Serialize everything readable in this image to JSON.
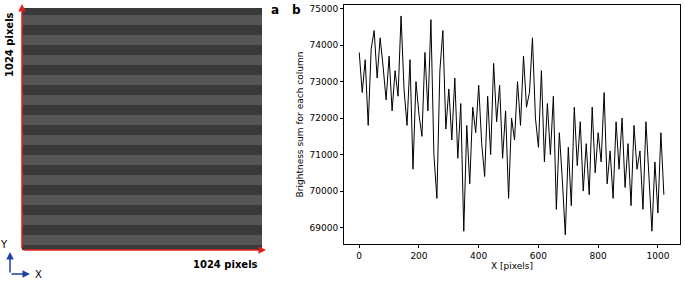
{
  "chart_data": [
    {
      "type": "image",
      "panel": "a",
      "width_label": "1024 pixels",
      "height_label": "1024 pixels",
      "x_axis_label": "X",
      "y_axis_label": "Y"
    },
    {
      "type": "line",
      "panel": "b",
      "xlabel": "X [pixels]",
      "ylabel": "Brightness sum for each column",
      "x": [
        0,
        10,
        20,
        30,
        40,
        50,
        60,
        70,
        80,
        90,
        100,
        110,
        120,
        130,
        140,
        150,
        160,
        170,
        180,
        190,
        200,
        210,
        220,
        230,
        240,
        250,
        260,
        270,
        280,
        290,
        300,
        310,
        320,
        330,
        340,
        350,
        360,
        370,
        380,
        390,
        400,
        410,
        420,
        430,
        440,
        450,
        460,
        470,
        480,
        490,
        500,
        510,
        520,
        530,
        540,
        550,
        560,
        570,
        580,
        590,
        600,
        610,
        620,
        630,
        640,
        650,
        660,
        670,
        680,
        690,
        700,
        710,
        720,
        730,
        740,
        750,
        760,
        770,
        780,
        790,
        800,
        810,
        820,
        830,
        840,
        850,
        860,
        870,
        880,
        890,
        900,
        910,
        920,
        930,
        940,
        950,
        960,
        970,
        980,
        990,
        1000,
        1010,
        1020
      ],
      "values": [
        73800,
        72700,
        73600,
        71800,
        73900,
        74400,
        73100,
        74200,
        73400,
        72500,
        73700,
        72200,
        73300,
        72600,
        74800,
        72800,
        71800,
        73600,
        70600,
        73000,
        72100,
        71500,
        73800,
        72200,
        74700,
        71000,
        69800,
        73300,
        74400,
        71700,
        72800,
        71400,
        73100,
        70900,
        72400,
        68900,
        71800,
        70200,
        72300,
        71600,
        72900,
        71300,
        70400,
        72600,
        71000,
        73500,
        71900,
        72900,
        70900,
        72200,
        69800,
        72000,
        71400,
        73000,
        71800,
        73700,
        72300,
        72700,
        74200,
        72000,
        71200,
        73300,
        70800,
        72400,
        71000,
        72600,
        69500,
        71600,
        70300,
        68800,
        71200,
        69600,
        72300,
        70700,
        71900,
        70000,
        71300,
        69900,
        72300,
        70500,
        71600,
        70800,
        72700,
        70200,
        71100,
        69800,
        71900,
        70600,
        72000,
        70100,
        71300,
        69600,
        71800,
        70600,
        71100,
        69500,
        71900,
        70300,
        68900,
        70800,
        69400,
        71600,
        69900
      ],
      "color": "#000000",
      "xlim": [
        -51,
        1074
      ],
      "ylim": [
        68550,
        75100
      ],
      "xticks": [
        0,
        200,
        400,
        600,
        800,
        1000
      ],
      "yticks": [
        69000,
        70000,
        71000,
        72000,
        73000,
        74000,
        75000
      ],
      "grid": false
    }
  ]
}
